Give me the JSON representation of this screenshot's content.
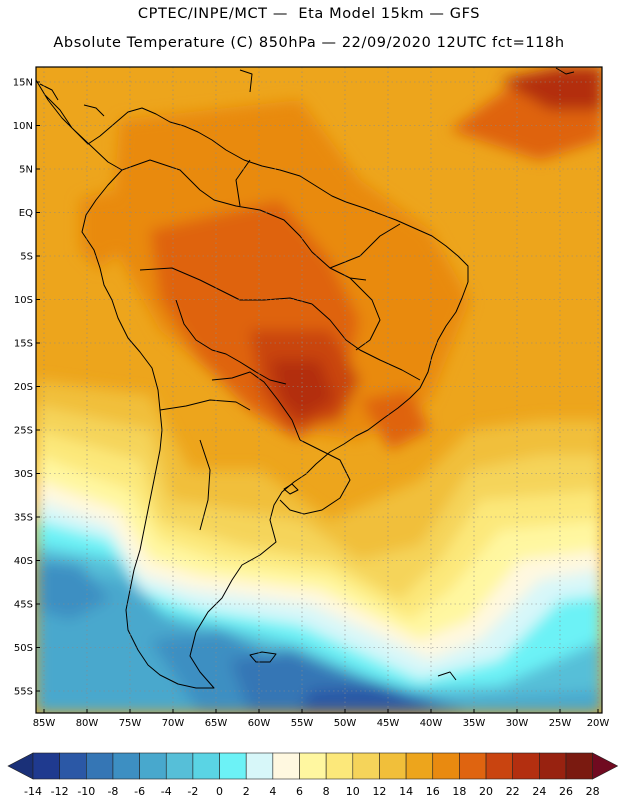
{
  "title_line1": "CPTEC/INPE/MCT —  Eta Model 15km — GFS",
  "title_line2": "Absolute Temperature (C) 850hPa — 22/09/2020 12UTC fct=118h",
  "lat_labels": [
    "15N",
    "10N",
    "5N",
    "EQ",
    "5S",
    "10S",
    "15S",
    "20S",
    "25S",
    "30S",
    "35S",
    "40S",
    "45S",
    "50S",
    "55S"
  ],
  "lon_labels": [
    "85W",
    "80W",
    "75W",
    "70W",
    "65W",
    "60W",
    "55W",
    "50W",
    "45W",
    "40W",
    "35W",
    "30W",
    "25W",
    "20W"
  ],
  "colorbar": {
    "colors": [
      "#1f3a8f",
      "#2b58a6",
      "#3576b5",
      "#3d8fc2",
      "#48a8cd",
      "#56bfd8",
      "#5ad4e4",
      "#6cf2f6",
      "#d7f7f9",
      "#fff8e0",
      "#fff7a0",
      "#fce87a",
      "#f5d45a",
      "#f1bf3a",
      "#eda51c",
      "#e98a10",
      "#df6410",
      "#c94410",
      "#b32f10",
      "#982210",
      "#7a1a10"
    ],
    "min_color": "#1a3078",
    "max_color": "#700a20",
    "labels": [
      "-14",
      "-12",
      "-10",
      "-8",
      "-6",
      "-4",
      "-2",
      "0",
      "2",
      "4",
      "6",
      "8",
      "10",
      "12",
      "14",
      "16",
      "18",
      "20",
      "22",
      "24",
      "26",
      "28"
    ]
  }
}
